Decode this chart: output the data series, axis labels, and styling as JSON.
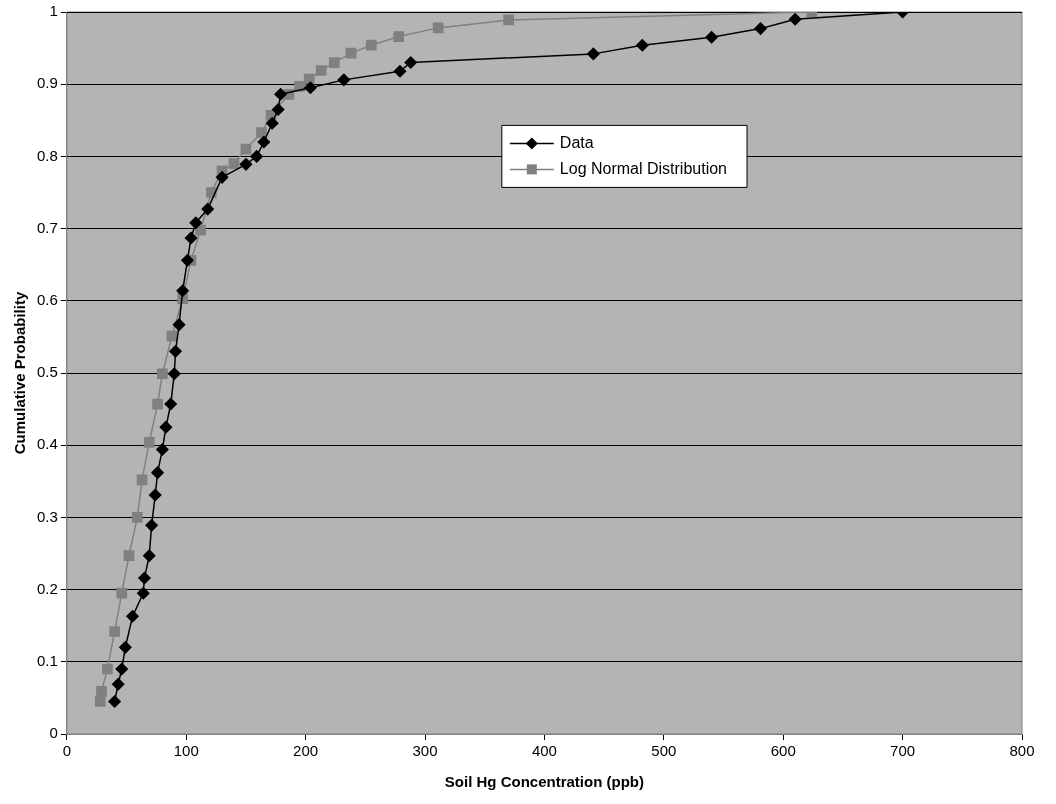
{
  "chart_data": {
    "type": "line",
    "xlabel": "Soil Hg Concentration (ppb)",
    "ylabel": "Cumulative Probability",
    "xlim": [
      0,
      800
    ],
    "xticks": [
      0,
      100,
      200,
      300,
      400,
      500,
      600,
      700,
      800
    ],
    "ylim": [
      0,
      1
    ],
    "yticks": [
      0,
      0.1,
      0.2,
      0.3,
      0.4,
      0.5,
      0.6,
      0.7,
      0.8,
      0.9,
      1
    ],
    "grid": "y",
    "legend": "top",
    "series": [
      {
        "name": "Data",
        "color": "#000000",
        "marker": "diamond",
        "x": [
          40,
          43,
          46,
          49,
          55,
          64,
          65,
          69,
          71,
          74,
          76,
          80,
          83,
          87,
          90,
          91,
          94,
          97,
          101,
          104,
          108,
          118,
          130,
          150,
          159,
          165,
          172,
          177,
          179,
          204,
          232,
          279,
          288,
          441,
          482,
          540,
          581,
          610,
          700
        ],
        "values": [
          0.045,
          0.069,
          0.09,
          0.12,
          0.163,
          0.195,
          0.216,
          0.247,
          0.289,
          0.331,
          0.362,
          0.394,
          0.425,
          0.457,
          0.499,
          0.53,
          0.567,
          0.614,
          0.656,
          0.687,
          0.708,
          0.727,
          0.771,
          0.789,
          0.8,
          0.82,
          0.846,
          0.865,
          0.886,
          0.895,
          0.906,
          0.918,
          0.93,
          0.942,
          0.954,
          0.965,
          0.977,
          0.99,
          1
        ]
      },
      {
        "name": "Log Normal Distribution",
        "color": "#808080",
        "marker": "square",
        "x": [
          28,
          29,
          34,
          40,
          46,
          52,
          59,
          63,
          69,
          76,
          80,
          88,
          97,
          104,
          112,
          121,
          130,
          140,
          150,
          163,
          171,
          186,
          195,
          203,
          213,
          224,
          238,
          255,
          278,
          311,
          370,
          624
        ],
        "values": [
          0.045,
          0.059,
          0.09,
          0.142,
          0.195,
          0.247,
          0.3,
          0.352,
          0.404,
          0.457,
          0.499,
          0.551,
          0.603,
          0.656,
          0.698,
          0.75,
          0.78,
          0.79,
          0.81,
          0.833,
          0.857,
          0.886,
          0.897,
          0.907,
          0.919,
          0.93,
          0.943,
          0.954,
          0.966,
          0.978,
          0.989,
          1
        ]
      }
    ]
  }
}
